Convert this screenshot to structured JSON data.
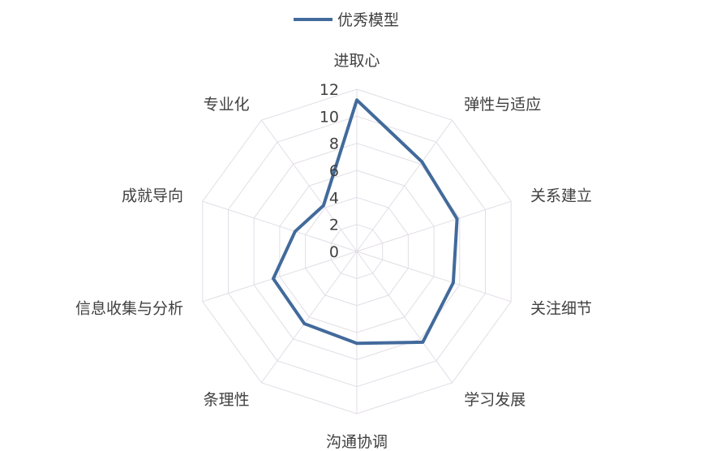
{
  "chart_data": {
    "type": "radar",
    "legend": {
      "position": "top"
    },
    "axes": [
      "进取心",
      "弹性与适应",
      "关系建立",
      "关注细节",
      "学习发展",
      "沟通协调",
      "条理性",
      "信息收集与分析",
      "成就导向",
      "专业化"
    ],
    "series": [
      {
        "name": "优秀模型",
        "color": "#426a9b",
        "values": [
          11.2,
          8.2,
          7.8,
          7.5,
          8.3,
          6.8,
          6.6,
          6.5,
          4.8,
          4.2
        ]
      }
    ],
    "rlim": [
      0,
      12
    ],
    "ticks": [
      0,
      2,
      4,
      6,
      8,
      10,
      12
    ],
    "grid": true
  }
}
